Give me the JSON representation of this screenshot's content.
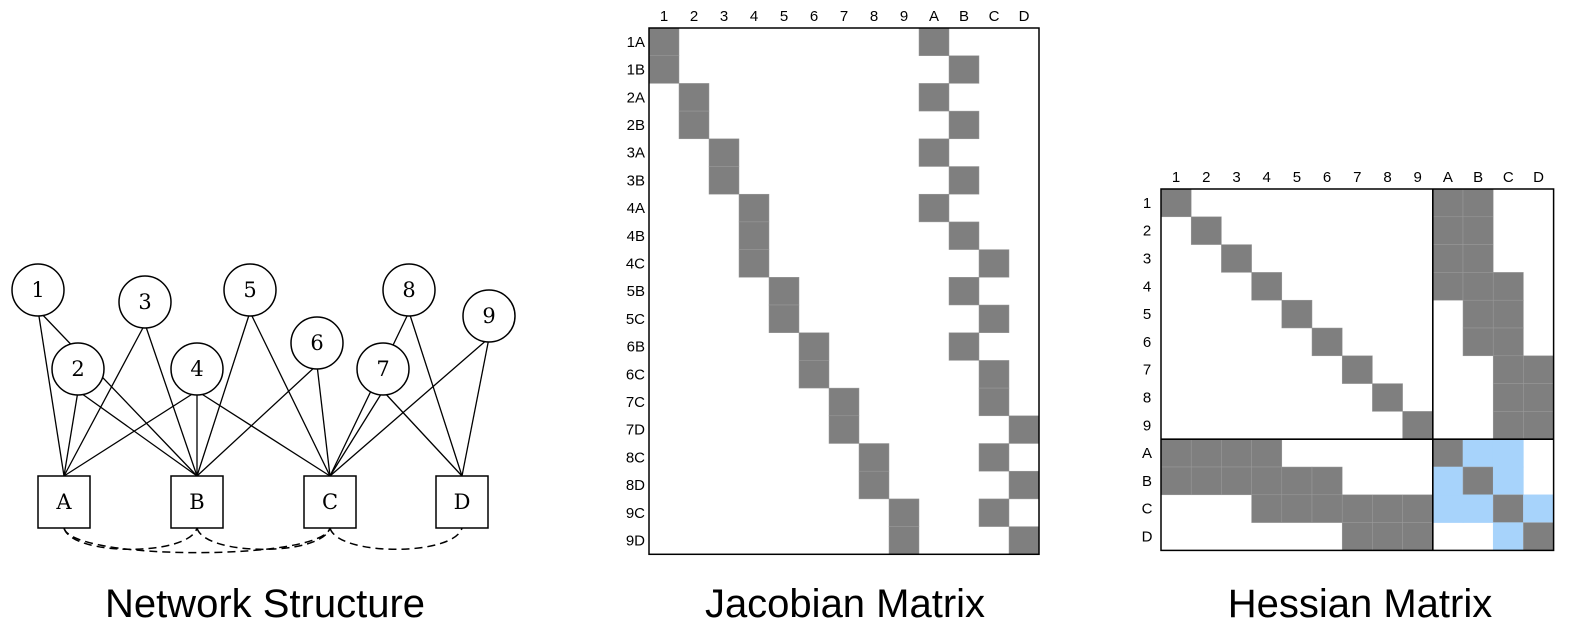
{
  "network": {
    "caption": "Network Structure",
    "variables": [
      "1",
      "2",
      "3",
      "4",
      "5",
      "6",
      "7",
      "8",
      "9"
    ],
    "factors": [
      "A",
      "B",
      "C",
      "D"
    ],
    "edges": [
      [
        "1",
        "A"
      ],
      [
        "1",
        "B"
      ],
      [
        "2",
        "A"
      ],
      [
        "2",
        "B"
      ],
      [
        "3",
        "A"
      ],
      [
        "3",
        "B"
      ],
      [
        "4",
        "A"
      ],
      [
        "4",
        "B"
      ],
      [
        "4",
        "C"
      ],
      [
        "5",
        "B"
      ],
      [
        "5",
        "C"
      ],
      [
        "6",
        "B"
      ],
      [
        "6",
        "C"
      ],
      [
        "7",
        "C"
      ],
      [
        "7",
        "D"
      ],
      [
        "8",
        "C"
      ],
      [
        "8",
        "D"
      ],
      [
        "9",
        "C"
      ],
      [
        "9",
        "D"
      ]
    ],
    "dashed_links": [
      [
        "A",
        "B"
      ],
      [
        "A",
        "C"
      ],
      [
        "B",
        "C"
      ],
      [
        "C",
        "D"
      ]
    ]
  },
  "jacobian": {
    "caption": "Jacobian Matrix",
    "columns": [
      "1",
      "2",
      "3",
      "4",
      "5",
      "6",
      "7",
      "8",
      "9",
      "A",
      "B",
      "C",
      "D"
    ],
    "rows": [
      "1A",
      "1B",
      "2A",
      "2B",
      "3A",
      "3B",
      "4A",
      "4B",
      "4C",
      "5B",
      "5C",
      "6B",
      "6C",
      "7C",
      "7D",
      "8C",
      "8D",
      "9C",
      "9D"
    ]
  },
  "hessian": {
    "caption": "Hessian Matrix",
    "columns": [
      "1",
      "2",
      "3",
      "4",
      "5",
      "6",
      "7",
      "8",
      "9",
      "A",
      "B",
      "C",
      "D"
    ],
    "rows": [
      "1",
      "2",
      "3",
      "4",
      "5",
      "6",
      "7",
      "8",
      "9",
      "A",
      "B",
      "C",
      "D"
    ],
    "blocks": {
      "A": [
        "1",
        "2",
        "3",
        "4"
      ],
      "B": [
        "1",
        "2",
        "3",
        "4",
        "5",
        "6"
      ],
      "C": [
        "4",
        "5",
        "6",
        "7",
        "8",
        "9"
      ],
      "D": [
        "7",
        "8",
        "9"
      ]
    },
    "light_cells": [
      [
        "A",
        "B"
      ],
      [
        "A",
        "C"
      ],
      [
        "B",
        "A"
      ],
      [
        "B",
        "C"
      ],
      [
        "C",
        "A"
      ],
      [
        "C",
        "B"
      ],
      [
        "C",
        "D"
      ],
      [
        "D",
        "C"
      ]
    ]
  },
  "colors": {
    "fill": "#7f7f7f",
    "light": "#a7d3fb",
    "line": "#000000"
  }
}
